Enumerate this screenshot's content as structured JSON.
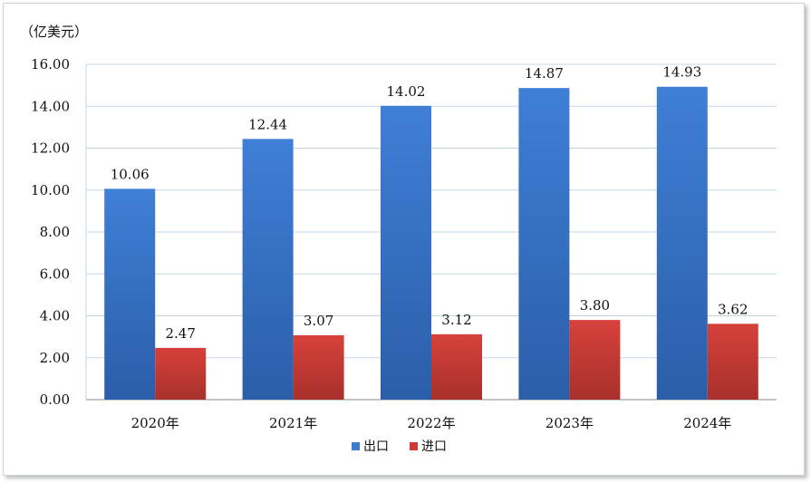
{
  "chart_data": {
    "type": "bar",
    "unit_label": "（亿美元）",
    "categories": [
      "2020年",
      "2021年",
      "2022年",
      "2023年",
      "2024年"
    ],
    "series": [
      {
        "name": "出口",
        "values": [
          10.06,
          12.44,
          14.02,
          14.87,
          14.93
        ],
        "labels": [
          "10.06",
          "12.44",
          "14.02",
          "14.87",
          "14.93"
        ],
        "color": "#3f7cd0"
      },
      {
        "name": "进口",
        "values": [
          2.47,
          3.07,
          3.12,
          3.8,
          3.62
        ],
        "labels": [
          "2.47",
          "3.07",
          "3.12",
          "3.80",
          "3.62"
        ],
        "color": "#cf3b35"
      }
    ],
    "ylim": [
      0,
      16
    ],
    "yticks": [
      "0.00",
      "2.00",
      "4.00",
      "6.00",
      "8.00",
      "10.00",
      "12.00",
      "14.00",
      "16.00"
    ],
    "grid": true,
    "legend_position": "bottom"
  }
}
